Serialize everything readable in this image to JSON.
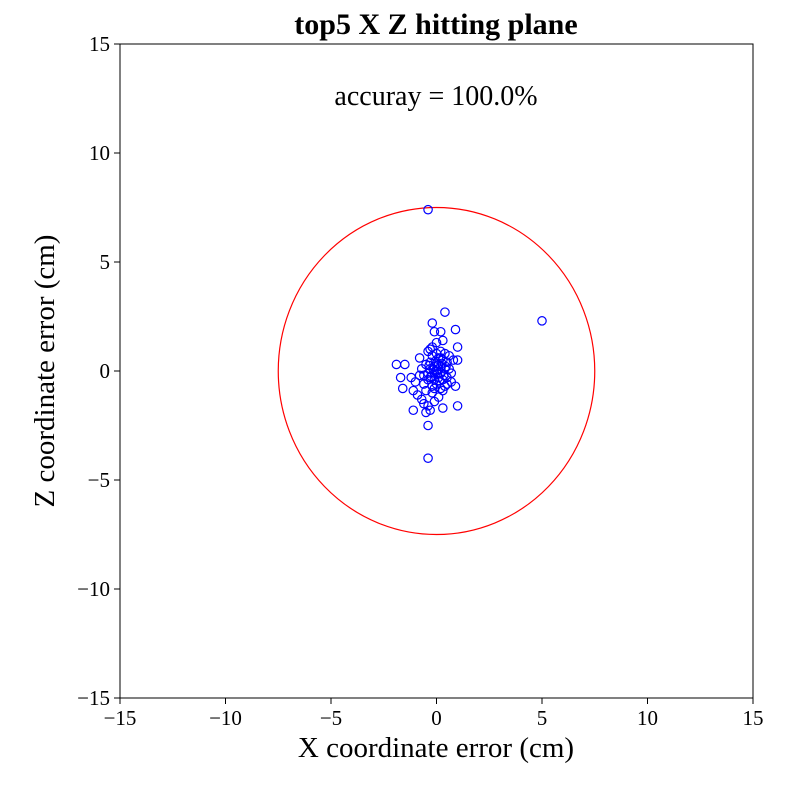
{
  "chart_data": {
    "type": "scatter",
    "title": "top5 X Z hitting plane",
    "xlabel": "X coordinate error (cm)",
    "ylabel": "Z coordinate error (cm)",
    "xlim": [
      -15,
      15
    ],
    "ylim": [
      -15,
      15
    ],
    "xticks": [
      -15,
      -10,
      -5,
      0,
      5,
      10,
      15
    ],
    "yticks": [
      -15,
      -10,
      -5,
      0,
      5,
      10,
      15
    ],
    "xtick_labels": [
      "−15",
      "−10",
      "−5",
      "0",
      "5",
      "10",
      "15"
    ],
    "ytick_labels": [
      "−15",
      "−10",
      "−5",
      "0",
      "5",
      "10",
      "15"
    ],
    "grid": false,
    "annotation": "accuray = 100.0%",
    "marker": "hollow-circle",
    "marker_color": "#0000ff",
    "circle": {
      "center": [
        0,
        0
      ],
      "radius": 7.5,
      "color": "#ff0000"
    },
    "points": [
      [
        -0.4,
        7.4
      ],
      [
        5.0,
        2.3
      ],
      [
        0.4,
        2.7
      ],
      [
        -0.2,
        2.2
      ],
      [
        0.9,
        1.9
      ],
      [
        -0.1,
        1.8
      ],
      [
        0.2,
        1.8
      ],
      [
        0.3,
        1.4
      ],
      [
        1.0,
        1.1
      ],
      [
        0.0,
        1.3
      ],
      [
        -0.3,
        1.0
      ],
      [
        -0.2,
        1.1
      ],
      [
        -0.4,
        0.9
      ],
      [
        -0.8,
        0.6
      ],
      [
        -1.9,
        0.3
      ],
      [
        -1.5,
        0.3
      ],
      [
        -1.7,
        -0.3
      ],
      [
        -1.2,
        -0.3
      ],
      [
        -1.0,
        -0.5
      ],
      [
        -1.6,
        -0.8
      ],
      [
        -1.1,
        -0.9
      ],
      [
        -0.9,
        -1.1
      ],
      [
        -0.7,
        -1.3
      ],
      [
        -0.6,
        -1.5
      ],
      [
        -0.4,
        -1.6
      ],
      [
        -0.5,
        -1.9
      ],
      [
        -0.3,
        -1.8
      ],
      [
        -1.1,
        -1.8
      ],
      [
        -0.4,
        -2.5
      ],
      [
        -0.4,
        -4.0
      ],
      [
        0.3,
        -1.7
      ],
      [
        1.0,
        -1.6
      ],
      [
        0.9,
        -0.7
      ],
      [
        0.7,
        -0.5
      ],
      [
        0.5,
        -0.3
      ],
      [
        1.0,
        0.5
      ],
      [
        0.8,
        0.5
      ],
      [
        0.6,
        0.7
      ],
      [
        0.4,
        0.8
      ],
      [
        0.2,
        0.9
      ],
      [
        0.1,
        0.6
      ],
      [
        0.3,
        0.5
      ],
      [
        0.5,
        0.4
      ],
      [
        0.2,
        0.2
      ],
      [
        0.4,
        0.1
      ],
      [
        0.6,
        0.1
      ],
      [
        0.7,
        -0.1
      ],
      [
        0.5,
        -0.6
      ],
      [
        0.3,
        -0.9
      ],
      [
        0.1,
        -1.2
      ],
      [
        -0.1,
        -1.4
      ],
      [
        -0.2,
        -1.0
      ],
      [
        -0.5,
        -0.9
      ],
      [
        -0.6,
        -0.6
      ],
      [
        -0.8,
        -0.2
      ],
      [
        -0.7,
        0.1
      ],
      [
        -0.5,
        0.3
      ],
      [
        -0.3,
        0.4
      ],
      [
        -0.2,
        0.7
      ],
      [
        0.0,
        0.8
      ],
      [
        0.1,
        0.3
      ],
      [
        -0.1,
        0.2
      ],
      [
        -0.3,
        0.1
      ],
      [
        -0.4,
        -0.1
      ],
      [
        -0.3,
        -0.3
      ],
      [
        -0.1,
        -0.4
      ],
      [
        0.1,
        -0.3
      ],
      [
        0.2,
        -0.1
      ],
      [
        0.3,
        -0.4
      ],
      [
        0.0,
        -0.6
      ],
      [
        -0.2,
        -0.7
      ],
      [
        0.2,
        -0.8
      ],
      [
        0.4,
        -0.7
      ],
      [
        -0.4,
        -0.4
      ],
      [
        -0.6,
        -0.2
      ],
      [
        0.0,
        0.0
      ],
      [
        0.1,
        0.1
      ],
      [
        -0.1,
        -0.1
      ],
      [
        0.05,
        -0.15
      ],
      [
        -0.15,
        0.05
      ],
      [
        0.25,
        0.35
      ],
      [
        -0.25,
        -0.25
      ],
      [
        0.15,
        -0.45
      ],
      [
        -0.05,
        0.45
      ],
      [
        0.35,
        -0.2
      ],
      [
        -0.35,
        0.25
      ],
      [
        0.0,
        0.35
      ],
      [
        0.2,
        0.6
      ],
      [
        -0.1,
        -0.8
      ],
      [
        0.45,
        0.2
      ]
    ]
  }
}
